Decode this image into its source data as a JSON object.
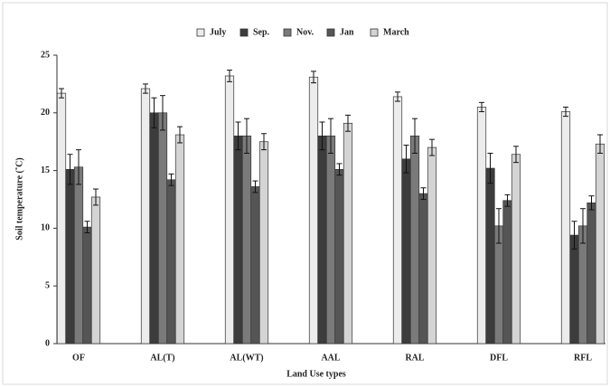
{
  "chart_data": {
    "type": "bar",
    "y_label": "Soil temperature (˚C)",
    "x_label": "Land Use types",
    "categories": [
      "OF",
      "AL(T)",
      "AL(WT)",
      "AAL",
      "RAL",
      "DFL",
      "RFL"
    ],
    "series": [
      {
        "name": "July",
        "color": "#ececec",
        "values": [
          21.7,
          22.1,
          23.2,
          23.1,
          21.4,
          20.5,
          20.1
        ],
        "errors": [
          0.4,
          0.4,
          0.5,
          0.5,
          0.4,
          0.4,
          0.4
        ]
      },
      {
        "name": "Sep.",
        "color": "#3c3c3c",
        "values": [
          15.1,
          20.0,
          18.0,
          18.0,
          16.0,
          15.2,
          9.4
        ],
        "errors": [
          1.3,
          1.3,
          1.2,
          1.2,
          1.2,
          1.3,
          1.2
        ]
      },
      {
        "name": "Nov.",
        "color": "#7a7a7a",
        "values": [
          15.3,
          20.0,
          18.0,
          18.0,
          18.0,
          10.2,
          10.2
        ],
        "errors": [
          1.5,
          1.5,
          1.5,
          1.5,
          1.5,
          1.5,
          1.5
        ]
      },
      {
        "name": "Jan",
        "color": "#555555",
        "values": [
          10.1,
          14.2,
          13.6,
          15.1,
          13.0,
          12.4,
          12.2
        ],
        "errors": [
          0.5,
          0.5,
          0.5,
          0.5,
          0.5,
          0.5,
          0.6
        ]
      },
      {
        "name": "March",
        "color": "#d4d4d4",
        "values": [
          12.7,
          18.1,
          17.5,
          19.1,
          17.0,
          16.4,
          17.3
        ],
        "errors": [
          0.7,
          0.7,
          0.7,
          0.7,
          0.7,
          0.7,
          0.8
        ]
      }
    ],
    "ylim": [
      0,
      25
    ],
    "yticks": [
      0,
      5,
      10,
      15,
      20,
      25
    ]
  }
}
